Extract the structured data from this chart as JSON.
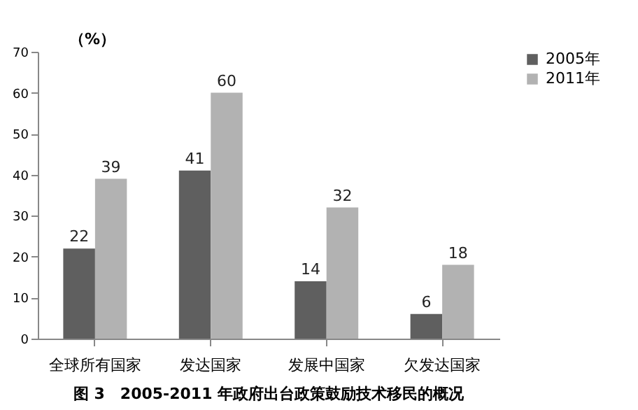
{
  "chart_data": {
    "type": "bar",
    "title": "图 3　2005-2011 年政府出台政策鼓励技术移民的概况",
    "ylabel": "（%）",
    "categories": [
      "全球所有国家",
      "发达国家",
      "发展中国家",
      "欠发达国家"
    ],
    "series": [
      {
        "name": "2005年",
        "color": "#5f5f5f",
        "values": [
          22,
          41,
          14,
          6
        ]
      },
      {
        "name": "2011年",
        "color": "#b2b2b2",
        "values": [
          39,
          60,
          32,
          18
        ]
      }
    ],
    "ylim": [
      0,
      70
    ],
    "yticks": [
      0,
      10,
      20,
      30,
      40,
      50,
      60,
      70
    ],
    "grid": false,
    "legend": "right",
    "data_labels": true
  }
}
